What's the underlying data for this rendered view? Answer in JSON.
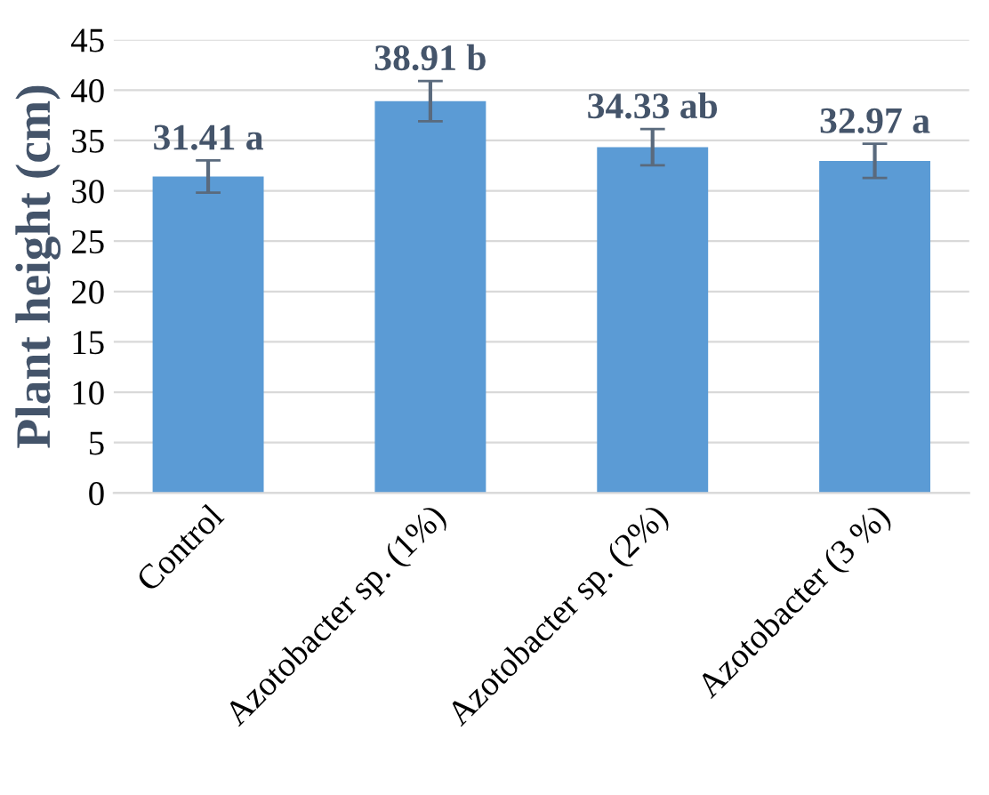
{
  "chart_data": {
    "type": "bar",
    "ylabel": "Plant height (cm)",
    "categories": [
      "Control",
      "Azotobacter sp. (1%)",
      "Azotobacter sp. (2%)",
      "Azotobacter (3 %)"
    ],
    "values": [
      31.41,
      38.91,
      34.33,
      32.97
    ],
    "errors": [
      1.6,
      2.0,
      1.8,
      1.7
    ],
    "value_labels": [
      "31.41 a",
      "38.91 b",
      "34.33 ab",
      "32.97 a"
    ],
    "color": "#5b9bd5",
    "ylim": [
      0,
      45
    ],
    "yticks": [
      0,
      5,
      10,
      15,
      20,
      25,
      30,
      35,
      40,
      45
    ],
    "grid": "y"
  }
}
